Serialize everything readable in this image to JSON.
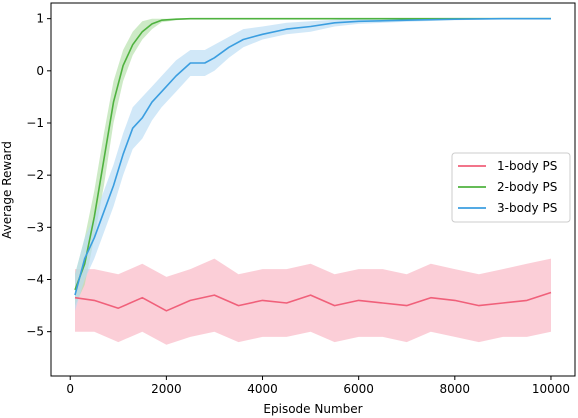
{
  "chart_data": {
    "type": "line",
    "xlabel": "Episode Number",
    "ylabel": "Average Reward",
    "xlim": [
      -400,
      10500
    ],
    "ylim": [
      -5.85,
      1.3
    ],
    "xticks": [
      0,
      2000,
      4000,
      6000,
      8000,
      10000
    ],
    "xtick_labels": [
      "0",
      "2000",
      "4000",
      "6000",
      "8000",
      "10000"
    ],
    "yticks": [
      1,
      0,
      -1,
      -2,
      -3,
      -4,
      -5
    ],
    "ytick_labels": [
      "1",
      "0",
      "−1",
      "−2",
      "−3",
      "−4",
      "−5"
    ],
    "grid": false,
    "legend_position": "center-right",
    "series": [
      {
        "name": "1-body PS",
        "color": "#f0607a",
        "band_color": "#f9b4c1",
        "x": [
          100,
          500,
          1000,
          1500,
          2000,
          2500,
          3000,
          3500,
          4000,
          4500,
          5000,
          5500,
          6000,
          6500,
          7000,
          7500,
          8000,
          8500,
          9000,
          9500,
          10000
        ],
        "values": [
          -4.35,
          -4.4,
          -4.55,
          -4.35,
          -4.6,
          -4.4,
          -4.3,
          -4.5,
          -4.4,
          -4.45,
          -4.3,
          -4.5,
          -4.4,
          -4.45,
          -4.5,
          -4.35,
          -4.4,
          -4.5,
          -4.45,
          -4.4,
          -4.25
        ],
        "lower": [
          -5.0,
          -5.0,
          -5.2,
          -5.0,
          -5.25,
          -5.1,
          -5.0,
          -5.2,
          -5.1,
          -5.1,
          -5.0,
          -5.2,
          -5.1,
          -5.1,
          -5.2,
          -5.0,
          -5.1,
          -5.2,
          -5.1,
          -5.1,
          -5.0
        ],
        "upper": [
          -3.8,
          -3.8,
          -3.9,
          -3.7,
          -3.95,
          -3.8,
          -3.6,
          -3.9,
          -3.8,
          -3.8,
          -3.7,
          -3.9,
          -3.8,
          -3.8,
          -3.9,
          -3.7,
          -3.8,
          -3.9,
          -3.8,
          -3.7,
          -3.6
        ]
      },
      {
        "name": "2-body PS",
        "color": "#4fb23f",
        "band_color": "#b2dea8",
        "x": [
          100,
          300,
          500,
          700,
          900,
          1100,
          1300,
          1500,
          1700,
          1900,
          2200,
          2500,
          3000,
          4000,
          5000,
          6000,
          7000,
          8000,
          9000,
          10000
        ],
        "values": [
          -4.2,
          -3.7,
          -2.8,
          -1.7,
          -0.6,
          0.1,
          0.5,
          0.75,
          0.9,
          0.97,
          0.99,
          1.0,
          1.0,
          1.0,
          1.0,
          1.0,
          1.0,
          1.0,
          1.0,
          1.0
        ],
        "lower": [
          -4.5,
          -4.1,
          -3.2,
          -2.2,
          -1.0,
          -0.2,
          0.3,
          0.6,
          0.8,
          0.93,
          0.97,
          0.99,
          1.0,
          1.0,
          1.0,
          1.0,
          1.0,
          1.0,
          1.0,
          1.0
        ],
        "upper": [
          -3.9,
          -3.2,
          -2.3,
          -1.2,
          -0.2,
          0.4,
          0.75,
          0.95,
          1.0,
          1.0,
          1.0,
          1.0,
          1.0,
          1.0,
          1.0,
          1.0,
          1.0,
          1.0,
          1.0,
          1.0
        ]
      },
      {
        "name": "3-body PS",
        "color": "#3b9ee0",
        "band_color": "#b9dcf5",
        "x": [
          100,
          300,
          500,
          700,
          900,
          1100,
          1300,
          1500,
          1700,
          1900,
          2200,
          2500,
          2800,
          3000,
          3300,
          3600,
          4000,
          4500,
          5000,
          5500,
          6000,
          7000,
          8000,
          9000,
          10000
        ],
        "values": [
          -4.3,
          -3.6,
          -3.2,
          -2.7,
          -2.2,
          -1.6,
          -1.1,
          -0.9,
          -0.6,
          -0.4,
          -0.1,
          0.15,
          0.15,
          0.25,
          0.45,
          0.6,
          0.7,
          0.8,
          0.85,
          0.92,
          0.95,
          0.97,
          0.99,
          1.0,
          1.0
        ],
        "lower": [
          -4.6,
          -4.0,
          -3.6,
          -3.1,
          -2.6,
          -2.0,
          -1.5,
          -1.3,
          -0.95,
          -0.7,
          -0.4,
          -0.1,
          -0.1,
          0.0,
          0.25,
          0.45,
          0.6,
          0.7,
          0.75,
          0.85,
          0.9,
          0.94,
          0.97,
          0.99,
          1.0
        ],
        "upper": [
          -3.9,
          -3.2,
          -2.8,
          -2.3,
          -1.8,
          -1.2,
          -0.7,
          -0.5,
          -0.3,
          -0.1,
          0.2,
          0.4,
          0.4,
          0.5,
          0.65,
          0.8,
          0.85,
          0.92,
          0.95,
          0.98,
          1.0,
          1.0,
          1.0,
          1.0,
          1.0
        ]
      }
    ]
  }
}
